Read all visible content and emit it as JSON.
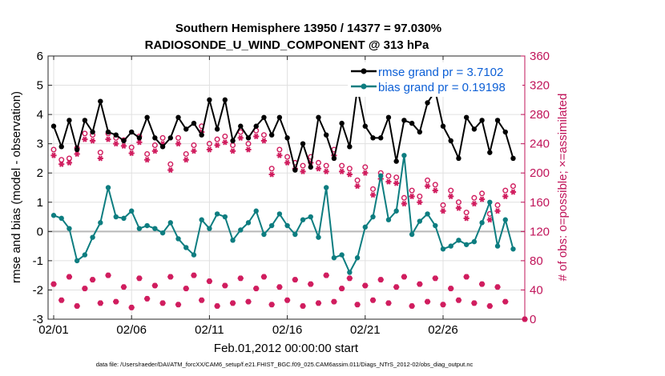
{
  "chart_data": {
    "type": "line",
    "title": "Southern Hemisphere 13950 / 14377 = 97.030%",
    "subtitle": "RADIOSONDE_U_WIND_COMPONENT @ 313 hPa",
    "xlabel": "Feb.01,2012 00:00:00 start",
    "ylabel": "rmse and bias (model - observation)",
    "ylabel_right": "# of obs: o=possible; ×=assimilated",
    "xlim": [
      0,
      58.5
    ],
    "ylim": [
      -3,
      6
    ],
    "ylim_right": [
      0,
      360
    ],
    "x_ticks": [
      0,
      10,
      20,
      30,
      40,
      50
    ],
    "x_tick_labels": [
      "02/01",
      "02/06",
      "02/11",
      "02/16",
      "02/21",
      "02/26"
    ],
    "y_ticks": [
      -3,
      -2,
      -1,
      0,
      1,
      2,
      3,
      4,
      5,
      6
    ],
    "y_tick_labels": [
      "-3",
      "-2",
      "-1",
      "0",
      "1",
      "2",
      "3",
      "4",
      "5",
      "6"
    ],
    "y_right_ticks": [
      0,
      40,
      80,
      120,
      160,
      200,
      240,
      280,
      320,
      360
    ],
    "y_right_tick_labels": [
      "0",
      "40",
      "80",
      "120",
      "160",
      "200",
      "240",
      "280",
      "320",
      "360"
    ],
    "grid": true,
    "legend_position": "top-right",
    "series": [
      {
        "name": "rmse grand pr = 3.7102",
        "color": "#000000",
        "marker": "filled-circle",
        "values": [
          3.6,
          2.9,
          3.8,
          2.8,
          3.8,
          3.4,
          4.45,
          3.4,
          3.3,
          3.1,
          3.4,
          3.2,
          3.9,
          3.2,
          2.9,
          3.2,
          3.9,
          3.5,
          3.7,
          3.3,
          4.5,
          3.5,
          4.5,
          3.1,
          3.6,
          3.2,
          3.6,
          3.9,
          3.3,
          3.9,
          3.2,
          2.1,
          3.0,
          2.2,
          3.9,
          3.3,
          2.5,
          3.7,
          2.9,
          4.9,
          3.6,
          3.2,
          3.2,
          3.9,
          2.4,
          3.8,
          3.7,
          3.4,
          4.4,
          4.8,
          3.6,
          3.1,
          2.5,
          3.9,
          3.5,
          3.8,
          2.7,
          3.8,
          3.4,
          2.5
        ]
      },
      {
        "name": "bias grand pr = 0.19198",
        "color": "#0d7d80",
        "marker": "filled-circle",
        "values": [
          0.55,
          0.45,
          0.1,
          -1.0,
          -0.8,
          -0.2,
          0.3,
          1.5,
          0.5,
          0.45,
          0.7,
          0.1,
          0.2,
          0.1,
          -0.05,
          0.3,
          -0.25,
          -0.55,
          -0.8,
          0.4,
          0.1,
          0.6,
          0.5,
          -0.3,
          0.05,
          0.3,
          0.7,
          -0.1,
          0.2,
          0.6,
          0.2,
          -0.1,
          0.4,
          0.5,
          -0.2,
          1.5,
          -0.9,
          -0.8,
          -1.4,
          -0.9,
          0.15,
          0.5,
          1.9,
          0.4,
          0.7,
          2.6,
          -0.1,
          0.35,
          0.6,
          0.2,
          -0.6,
          -0.5,
          -0.3,
          -0.45,
          -0.35,
          0.3,
          1.0,
          -0.5,
          0.4,
          -0.6
        ]
      }
    ],
    "obs_possible_right": [
      232,
      218,
      220,
      234,
      254,
      252,
      228,
      254,
      248,
      245,
      235,
      250,
      226,
      238,
      248,
      212,
      248,
      226,
      238,
      264,
      240,
      246,
      250,
      238,
      256,
      240,
      258,
      252,
      206,
      232,
      222,
      214,
      210,
      222,
      214,
      210,
      232,
      210,
      206,
      190,
      208,
      178,
      200,
      196,
      194,
      166,
      176,
      168,
      190,
      184,
      156,
      176,
      160,
      146,
      166,
      172,
      144,
      156,
      176,
      182
    ],
    "obs_assimilated_right": [
      224,
      212,
      214,
      226,
      246,
      244,
      220,
      246,
      240,
      237,
      227,
      242,
      218,
      230,
      240,
      204,
      240,
      218,
      230,
      256,
      232,
      238,
      242,
      230,
      248,
      232,
      250,
      244,
      198,
      224,
      214,
      206,
      202,
      214,
      206,
      202,
      224,
      202,
      198,
      182,
      200,
      170,
      192,
      188,
      186,
      158,
      168,
      160,
      182,
      176,
      148,
      168,
      152,
      138,
      158,
      164,
      136,
      148,
      168,
      174
    ],
    "obs_lower_right": [
      48,
      26,
      58,
      18,
      42,
      54,
      22,
      60,
      24,
      44,
      16,
      56,
      28,
      46,
      22,
      58,
      20,
      42,
      60,
      26,
      52,
      18,
      46,
      22,
      56,
      24,
      42,
      58,
      20,
      44,
      26,
      54,
      18,
      48,
      22,
      60,
      24,
      42,
      56,
      20,
      46,
      26,
      54,
      22,
      44,
      58,
      18,
      48,
      24,
      56,
      20,
      42,
      26,
      58,
      22,
      48,
      18,
      44,
      24,
      0
    ]
  },
  "footer": "data file: /Users/raeder/DAI/ATM_forcXX/CAM6_setup/f.e21.FHIST_BGC.f09_025.CAM6assim.011/Diags_NTrS_2012-02/obs_diag_output.nc",
  "colors": {
    "rmse": "#000000",
    "bias": "#0d7d80",
    "obs": "#d01c5e",
    "right_axis": "#c0145a",
    "legend_text": "#0c5fd6",
    "zero_line": "#b8b8b8",
    "grid": "#e0e0e0"
  }
}
